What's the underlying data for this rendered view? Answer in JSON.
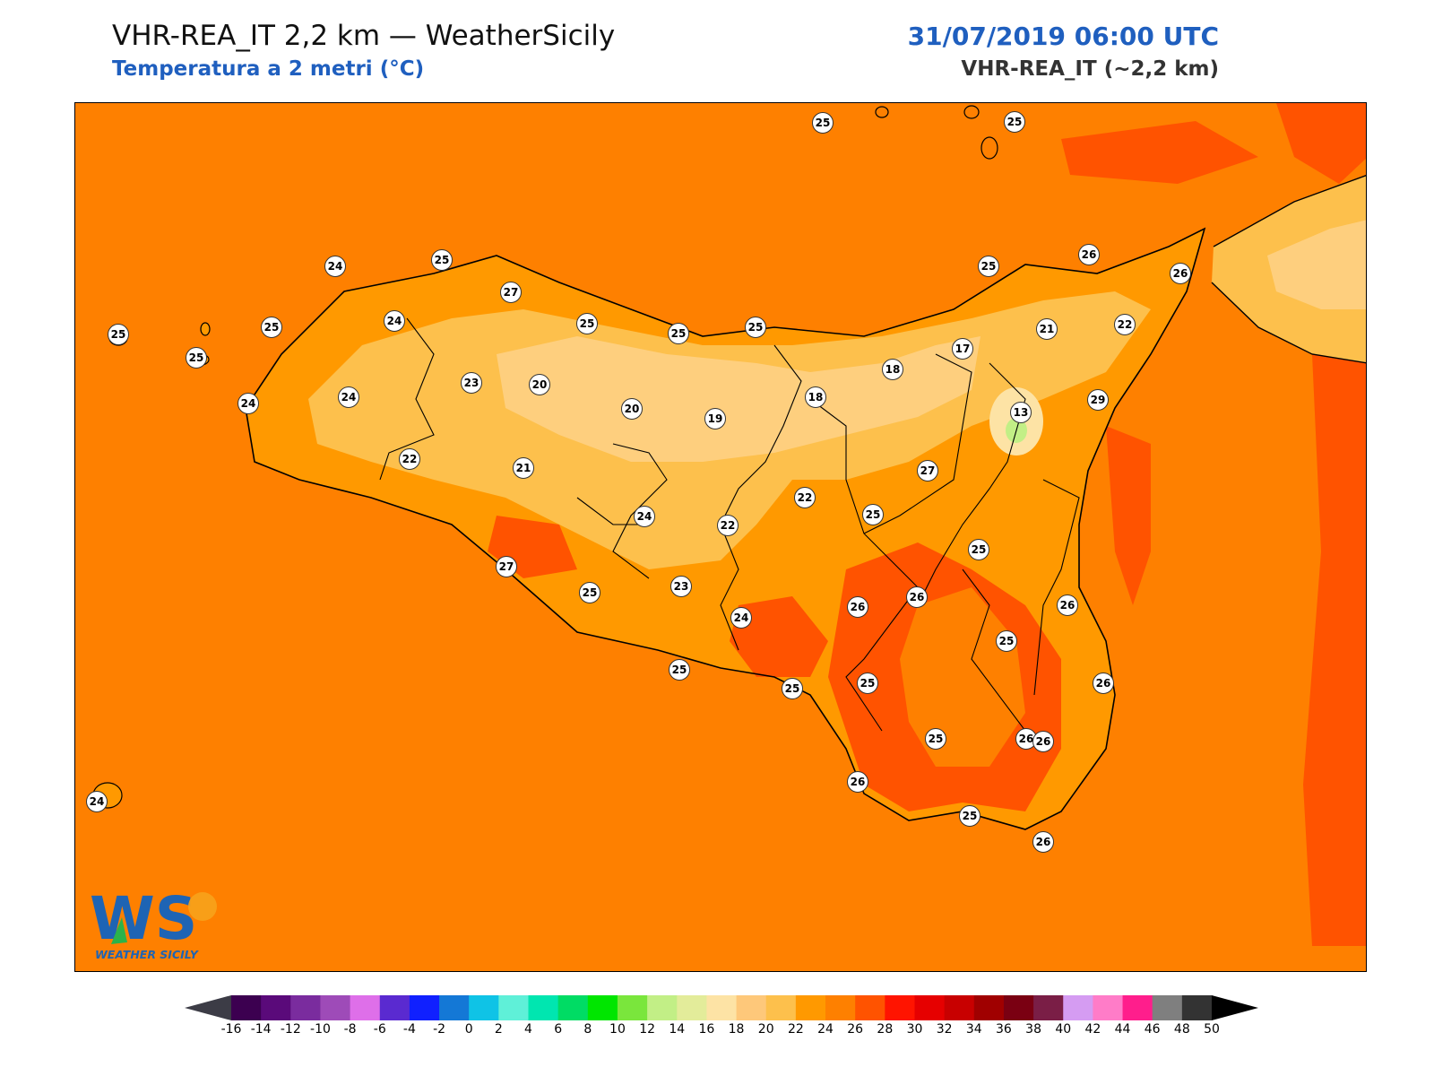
{
  "header": {
    "title": "VHR-REA_IT 2,2 km — WeatherSicily",
    "subtitle": "Temperatura a 2 metri (°C)",
    "datetime": "31/07/2019 06:00 UTC",
    "model": "VHR-REA_IT (~2,2 km)"
  },
  "logo": {
    "text": "WS",
    "caption": "WEATHER SICILY"
  },
  "colors": {
    "background_24_26": "#fe8000",
    "land_20_22": "#fcb64a",
    "land_22_24": "#fdc04c",
    "land_24": "#ff9900",
    "land_18_20": "#fecf7e",
    "sea_26_28": "#ff5300",
    "accent_title": "#1f5fbf"
  },
  "stations": [
    {
      "value": "25"
    },
    {
      "value": "25"
    },
    {
      "value": "25"
    },
    {
      "value": "24"
    },
    {
      "value": "25"
    },
    {
      "value": "27"
    },
    {
      "value": "25"
    },
    {
      "value": "24"
    },
    {
      "value": "25"
    },
    {
      "value": "25"
    },
    {
      "value": "25"
    },
    {
      "value": "24"
    },
    {
      "value": "24"
    },
    {
      "value": "23"
    },
    {
      "value": "20"
    },
    {
      "value": "20"
    },
    {
      "value": "19"
    },
    {
      "value": "18"
    },
    {
      "value": "18"
    },
    {
      "value": "17"
    },
    {
      "value": "21"
    },
    {
      "value": "22"
    },
    {
      "value": "26"
    },
    {
      "value": "26"
    },
    {
      "value": "25"
    },
    {
      "value": "13"
    },
    {
      "value": "29"
    },
    {
      "value": "25"
    },
    {
      "value": "22"
    },
    {
      "value": "21"
    },
    {
      "value": "27"
    },
    {
      "value": "22"
    },
    {
      "value": "24"
    },
    {
      "value": "22"
    },
    {
      "value": "25"
    },
    {
      "value": "26"
    },
    {
      "value": "25"
    },
    {
      "value": "27"
    },
    {
      "value": "25"
    },
    {
      "value": "23"
    },
    {
      "value": "26"
    },
    {
      "value": "24"
    },
    {
      "value": "26"
    },
    {
      "value": "26"
    },
    {
      "value": "25"
    },
    {
      "value": "25"
    },
    {
      "value": "25"
    },
    {
      "value": "25"
    },
    {
      "value": "26"
    },
    {
      "value": "25"
    },
    {
      "value": "26"
    },
    {
      "value": "26"
    },
    {
      "value": "25"
    },
    {
      "value": "26"
    },
    {
      "value": "24"
    }
  ],
  "colorbar": {
    "ticks": [
      "-16",
      "-14",
      "-12",
      "-10",
      "-8",
      "-6",
      "-4",
      "-2",
      "0",
      "2",
      "4",
      "6",
      "8",
      "10",
      "12",
      "14",
      "16",
      "18",
      "20",
      "22",
      "24",
      "26",
      "28",
      "30",
      "32",
      "34",
      "36",
      "38",
      "40",
      "42",
      "44",
      "46",
      "48",
      "50"
    ],
    "colors": [
      "#3c0050",
      "#5a0a7a",
      "#7a2c9e",
      "#9e4bb8",
      "#de6fe9",
      "#5a2ad0",
      "#1020ff",
      "#1478d6",
      "#0fc3e6",
      "#5ff0d8",
      "#00e6b0",
      "#00dc64",
      "#00e600",
      "#7ae63c",
      "#c2ef86",
      "#e3ec9a",
      "#fde3a5",
      "#fec87a",
      "#fdc04c",
      "#ff9900",
      "#fe8000",
      "#ff5300",
      "#ff1400",
      "#e60000",
      "#c80000",
      "#a00000",
      "#7a0012",
      "#7a1e46",
      "#d59cf2",
      "#ff7cc8",
      "#ff1e8c",
      "#7f7f7f",
      "#333333"
    ],
    "under_color": "#3c3c46",
    "over_color": "#000000"
  }
}
